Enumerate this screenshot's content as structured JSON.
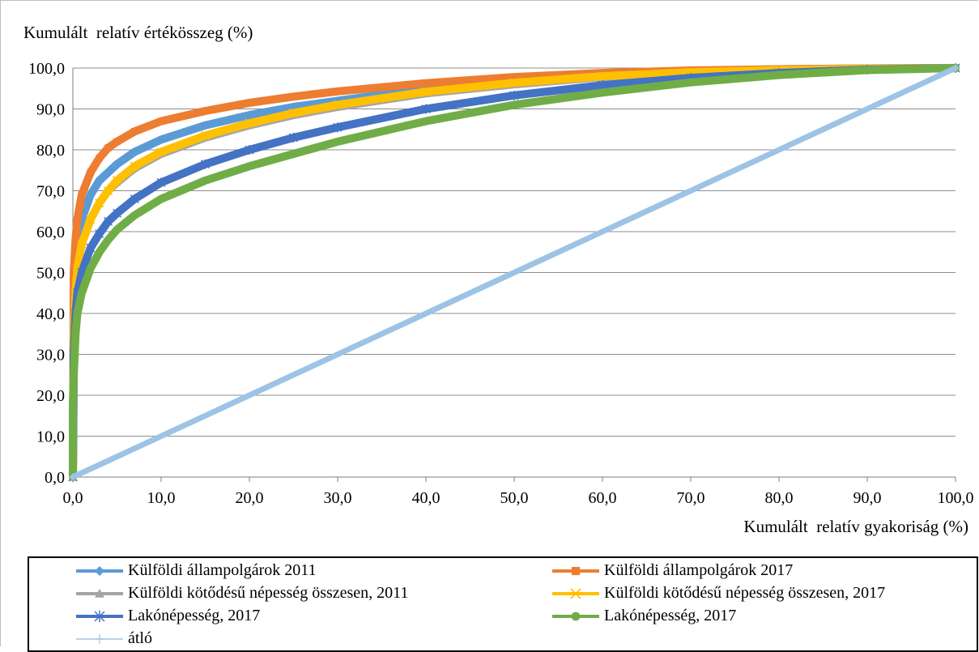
{
  "chart_data": {
    "type": "line",
    "ylabel": "Kumulált  relatív értékösszeg (%)",
    "xlabel": "Kumulált  relatív gyakoriság (%)",
    "xlim": [
      0,
      100
    ],
    "ylim": [
      0,
      100
    ],
    "xticks": [
      "0,0",
      "10,0",
      "20,0",
      "30,0",
      "40,0",
      "50,0",
      "60,0",
      "70,0",
      "80,0",
      "90,0",
      "100,0"
    ],
    "yticks": [
      "0,0",
      "10,0",
      "20,0",
      "30,0",
      "40,0",
      "50,0",
      "60,0",
      "70,0",
      "80,0",
      "90,0",
      "100,0"
    ],
    "grid": "horizontal",
    "legend_position": "bottom",
    "series": [
      {
        "name": "Külföldi állampolgárok 2011",
        "color": "#5b9bd5",
        "marker": "diamond",
        "x": [
          0,
          0.1,
          0.3,
          0.5,
          1,
          2,
          3,
          4,
          5,
          7,
          10,
          15,
          20,
          25,
          30,
          40,
          50,
          60,
          70,
          80,
          90,
          100
        ],
        "y": [
          0,
          44,
          53,
          58,
          63,
          69,
          72.5,
          74.5,
          76.5,
          79.5,
          82.5,
          86,
          88.5,
          90.5,
          92,
          95,
          97,
          98.5,
          99.3,
          99.7,
          99.9,
          100
        ]
      },
      {
        "name": "Külföldi állampolgárok 2017",
        "color": "#ed7d31",
        "marker": "square",
        "x": [
          0,
          0.1,
          0.3,
          0.5,
          1,
          2,
          3,
          4,
          5,
          7,
          10,
          15,
          20,
          25,
          30,
          40,
          50,
          60,
          70,
          80,
          90,
          100
        ],
        "y": [
          0,
          50,
          58,
          63,
          69,
          74.5,
          78,
          80.5,
          82,
          84.5,
          87,
          89.5,
          91.5,
          93,
          94.3,
          96.3,
          97.8,
          98.8,
          99.4,
          99.7,
          99.9,
          100
        ]
      },
      {
        "name": "Külföldi kötődésű népesség összesen, 2011",
        "color": "#a5a5a5",
        "marker": "triangle",
        "x": [
          0,
          0.1,
          0.3,
          0.5,
          1,
          2,
          3,
          4,
          5,
          7,
          10,
          15,
          20,
          25,
          30,
          40,
          50,
          60,
          70,
          80,
          90,
          100
        ],
        "y": [
          0,
          35,
          45,
          51,
          57,
          63,
          67,
          70,
          72,
          75.5,
          79,
          83,
          86,
          88.5,
          90.5,
          93.8,
          96,
          97.8,
          98.9,
          99.5,
          99.8,
          100
        ]
      },
      {
        "name": "Külföldi kötődésű népesség összesen, 2017",
        "color": "#ffc000",
        "marker": "x",
        "x": [
          0,
          0.1,
          0.3,
          0.5,
          1,
          2,
          3,
          4,
          5,
          7,
          10,
          15,
          20,
          25,
          30,
          40,
          50,
          60,
          70,
          80,
          90,
          100
        ],
        "y": [
          0,
          35,
          45,
          51,
          57,
          63,
          67,
          70,
          72.5,
          76,
          79.5,
          83.5,
          86.5,
          89,
          91,
          94.2,
          96.4,
          98,
          99,
          99.5,
          99.8,
          100
        ]
      },
      {
        "name": "Lakónépesség, 2017",
        "color": "#4472c4",
        "marker": "star",
        "x": [
          0,
          0.1,
          0.3,
          0.5,
          1,
          2,
          3,
          4,
          5,
          7,
          10,
          15,
          20,
          25,
          30,
          40,
          50,
          60,
          70,
          80,
          90,
          100
        ],
        "y": [
          0,
          30,
          40,
          45,
          50,
          56,
          59.5,
          62.5,
          64.5,
          68,
          72,
          76.5,
          80,
          83,
          85.5,
          90,
          93.3,
          95.8,
          97.6,
          98.8,
          99.6,
          100
        ]
      },
      {
        "name": "Lakónépesség, 2017",
        "color": "#70ad47",
        "marker": "circle",
        "x": [
          0,
          0,
          0.1,
          0.3,
          0.5,
          1,
          2,
          3,
          4,
          5,
          7,
          10,
          15,
          20,
          25,
          30,
          40,
          50,
          60,
          70,
          80,
          90,
          100
        ],
        "y": [
          0,
          18,
          25,
          35,
          40,
          45,
          51,
          55,
          58,
          60.5,
          64,
          68,
          72.5,
          76,
          79,
          82,
          87,
          91,
          94,
          96.5,
          98.3,
          99.5,
          100
        ]
      },
      {
        "name": "átló",
        "color": "#9dc3e6",
        "marker": "plus",
        "x": [
          0,
          100
        ],
        "y": [
          0,
          100
        ]
      }
    ]
  }
}
